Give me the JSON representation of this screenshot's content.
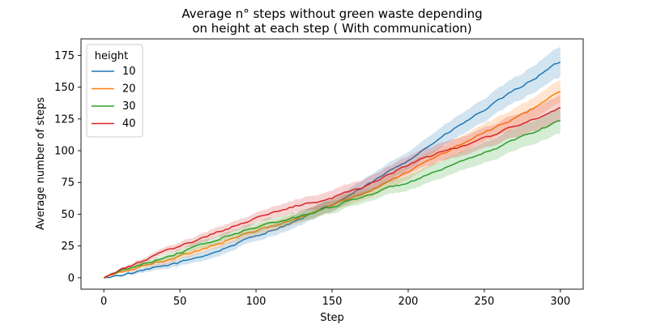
{
  "chart_data": {
    "type": "line",
    "title": "Average n° steps without green waste depending\non height at each step ( With communication)",
    "xlabel": "Step",
    "ylabel": "Average number of steps",
    "xlim": [
      -15,
      315
    ],
    "ylim": [
      -9,
      188
    ],
    "xticks": [
      0,
      50,
      100,
      150,
      200,
      250,
      300
    ],
    "yticks": [
      0,
      25,
      50,
      75,
      100,
      125,
      150,
      175
    ],
    "grid": false,
    "legend": {
      "title": "height",
      "placement": "top-left"
    },
    "series": [
      {
        "name": "10",
        "color": "#1f77b4",
        "x": [
          0,
          25,
          50,
          75,
          100,
          125,
          150,
          175,
          200,
          225,
          250,
          275,
          300
        ],
        "y": [
          0,
          5,
          12,
          21,
          33,
          44,
          57,
          74,
          93,
          113,
          132,
          151,
          170
        ],
        "band": [
          0,
          2,
          3,
          4,
          4,
          5,
          5,
          6,
          7,
          8,
          9,
          10,
          12
        ]
      },
      {
        "name": "20",
        "color": "#ff7f0e",
        "x": [
          0,
          25,
          50,
          75,
          100,
          125,
          150,
          175,
          200,
          225,
          250,
          275,
          300
        ],
        "y": [
          0,
          9,
          17,
          27,
          37,
          46,
          57,
          69,
          84,
          99,
          114,
          128,
          147
        ],
        "band": [
          0,
          2,
          3,
          3,
          4,
          4,
          5,
          5,
          6,
          6,
          7,
          8,
          9
        ]
      },
      {
        "name": "30",
        "color": "#2ca02c",
        "x": [
          0,
          25,
          50,
          75,
          100,
          125,
          150,
          175,
          200,
          225,
          250,
          275,
          300
        ],
        "y": [
          0,
          11,
          20,
          30,
          40,
          47,
          56,
          66,
          75,
          86,
          98,
          111,
          124
        ],
        "band": [
          0,
          2,
          3,
          3,
          4,
          4,
          5,
          5,
          6,
          7,
          8,
          9,
          10
        ]
      },
      {
        "name": "40",
        "color": "#d62728",
        "x": [
          0,
          25,
          50,
          75,
          100,
          125,
          150,
          175,
          200,
          225,
          250,
          275,
          300
        ],
        "y": [
          0,
          13,
          25,
          36,
          47,
          56,
          63,
          74,
          89,
          100,
          110,
          121,
          134
        ],
        "band": [
          0,
          2,
          3,
          4,
          4,
          5,
          6,
          6,
          7,
          7,
          8,
          9,
          10
        ]
      }
    ]
  }
}
